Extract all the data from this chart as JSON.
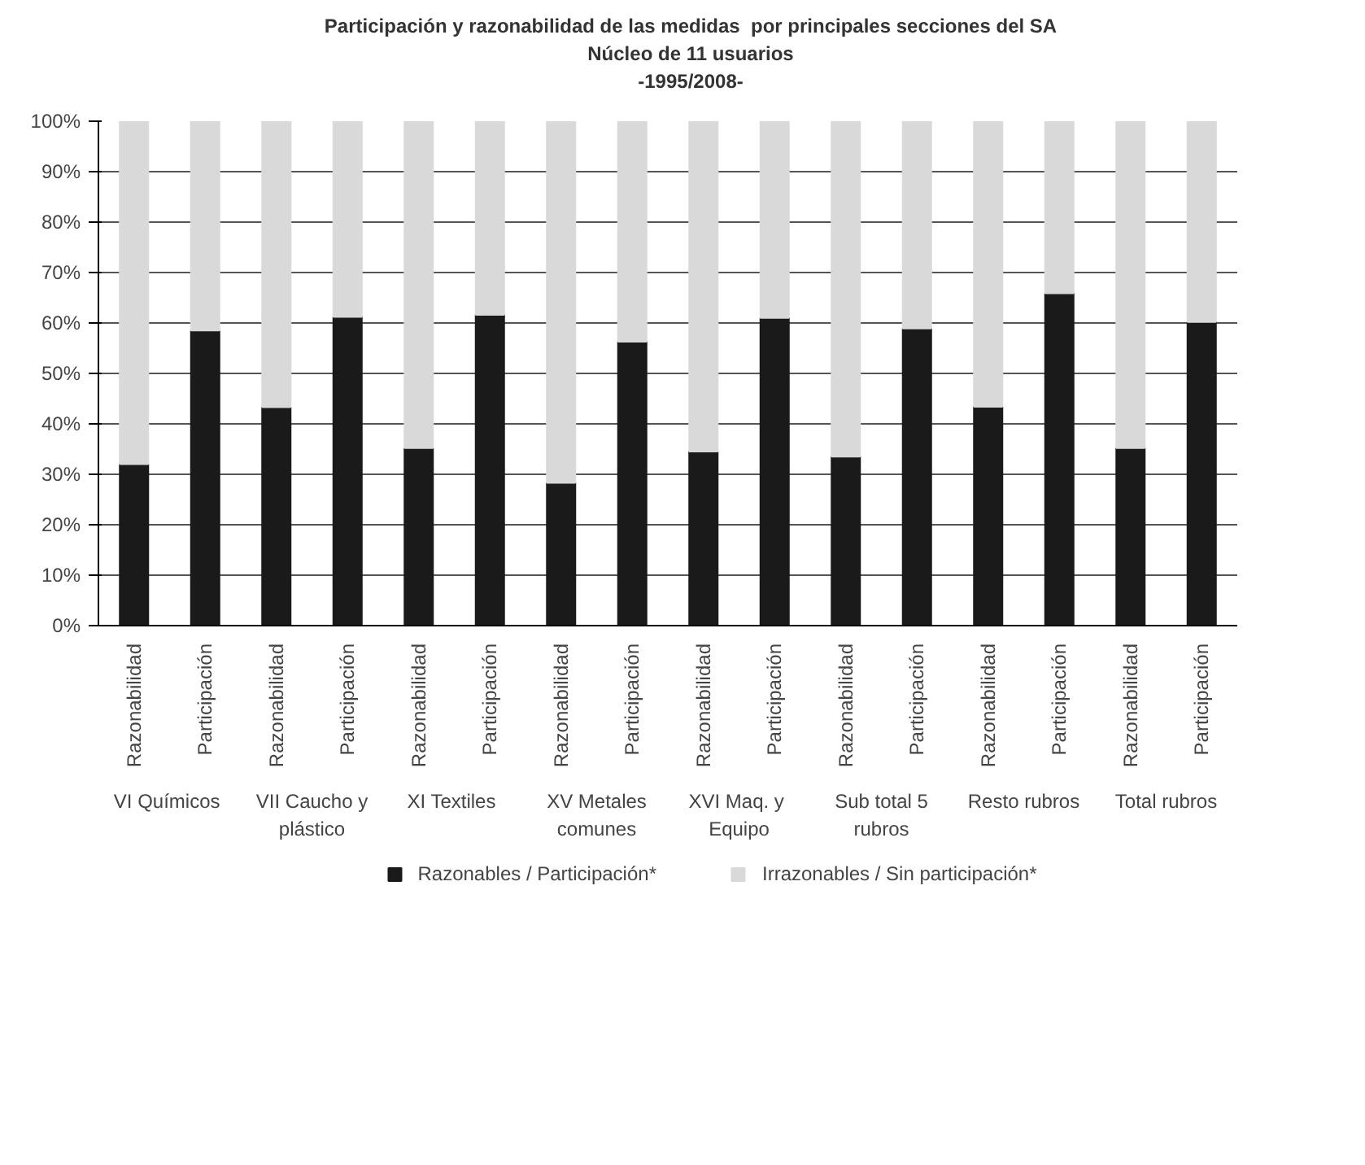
{
  "chart_data": {
    "type": "bar",
    "stacked": true,
    "title": "Participación y razonabilidad de las medidas  por principales secciones del SA",
    "subtitle": "Núcleo de 11 usuarios\n-1995/2008-",
    "categories": [
      "Razonabilidad",
      "Participación",
      "Razonabilidad",
      "Participación",
      "Razonabilidad",
      "Participación",
      "Razonabilidad",
      "Participación",
      "Razonabilidad",
      "Participación",
      "Razonabilidad",
      "Participación",
      "Razonabilidad",
      "Participación",
      "Razonabilidad",
      "Participación"
    ],
    "annotations": [
      "VI  Químicos",
      "VII Caucho y plástico",
      "XI  Textiles",
      "XV Metales comunes",
      "XVI  Maq. y Equipo",
      "Sub total 5 rubros",
      "Resto rubros",
      "Total rubros"
    ],
    "series": [
      {
        "name": "Razonables / Participación*",
        "color": "#1a1a1a",
        "values": [
          32,
          58.5,
          43.3,
          61.2,
          35.2,
          61.6,
          28.3,
          56.3,
          34.5,
          61,
          33.5,
          58.9,
          43.4,
          65.9,
          35.2,
          60.2
        ]
      },
      {
        "name": "Irrazonables / Sin participación*",
        "color": "#d9d9d9",
        "values": [
          68,
          41.5,
          56.7,
          38.8,
          64.8,
          38.4,
          71.7,
          43.7,
          65.5,
          39,
          66.5,
          41.1,
          56.6,
          34.1,
          64.8,
          39.8
        ]
      }
    ],
    "ylim": [
      0,
      100
    ],
    "yticks": [
      {
        "value": 0,
        "label": "0%"
      },
      {
        "value": 10,
        "label": "10%"
      },
      {
        "value": 20,
        "label": "20%"
      },
      {
        "value": 30,
        "label": "30%"
      },
      {
        "value": 40,
        "label": "40%"
      },
      {
        "value": 50,
        "label": "50%"
      },
      {
        "value": 60,
        "label": "60%"
      },
      {
        "value": 70,
        "label": "70%"
      },
      {
        "value": 80,
        "label": "80%"
      },
      {
        "value": 90,
        "label": "90%"
      },
      {
        "value": 100,
        "label": "100%"
      }
    ],
    "grid": "y",
    "legend": "bottom"
  }
}
